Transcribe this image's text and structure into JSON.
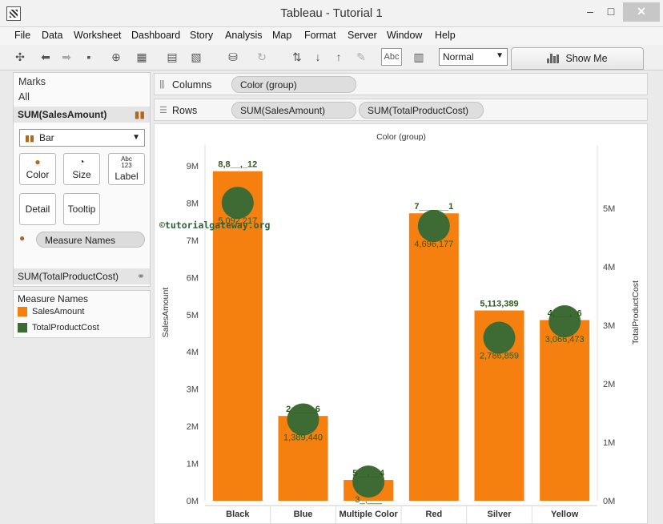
{
  "window": {
    "title": "Tableau - Tutorial 1",
    "min": "–",
    "max": "□",
    "close": "✕"
  },
  "menu": [
    "File",
    "Data",
    "Worksheet",
    "Dashboard",
    "Story",
    "Analysis",
    "Map",
    "Format",
    "Server",
    "Window",
    "Help"
  ],
  "toolbar": {
    "label_button": "Abc",
    "fit_value": "Normal",
    "show_me": "Show Me"
  },
  "shelves": {
    "columns_label": "Columns",
    "columns_pill": "Color (group)",
    "rows_label": "Rows",
    "rows_pills": [
      "SUM(SalesAmount)",
      "SUM(TotalProductCost)"
    ]
  },
  "marks": {
    "header": "Marks",
    "all": "All",
    "sales_card": "SUM(SalesAmount)",
    "mark_type": "Bar",
    "cards": {
      "color": "Color",
      "size": "Size",
      "label": "Label",
      "label_icon_top": "Abc",
      "label_icon_bottom": "123",
      "detail": "Detail",
      "tooltip": "Tooltip"
    },
    "measure_names_pill": "Measure Names",
    "cost_card": "SUM(TotalProductCost)"
  },
  "legend": {
    "title": "Measure Names",
    "items": [
      {
        "label": "SalesAmount",
        "color": "#f5800f"
      },
      {
        "label": "TotalProductCost",
        "color": "#3e6b33"
      }
    ]
  },
  "watermark": "©tutorialgateway.org",
  "colors": {
    "bar": "#f5800f",
    "circle": "#3e6b33",
    "label": "#2e5a1e"
  },
  "chart_data": {
    "type": "bar",
    "header": "Color (group)",
    "categories": [
      "Black",
      "Blue",
      "Multiple Color",
      "Red",
      "Silver",
      "Yellow"
    ],
    "series": [
      {
        "name": "SalesAmount",
        "values": [
          8855512,
          2279096,
          558654,
          7724331,
          5113389,
          4856666
        ],
        "labels": [
          "8,8__,_12",
          "2_____6",
          "5__,__4",
          "7______1",
          "5,113,389",
          "4,___,_6"
        ]
      },
      {
        "name": "TotalProductCost",
        "values": [
          5092217,
          1389440,
          327896,
          4696177,
          2786859,
          3066473
        ],
        "labels": [
          "5,092,217",
          "1,389,440",
          "3_,___",
          "4,696,177",
          "2,786,859",
          "3,066,473"
        ]
      }
    ],
    "ylabel": "SalesAmount",
    "y2label": "TotalProductCost",
    "ylim": [
      0,
      9000000
    ],
    "y2lim": [
      0,
      5600000
    ],
    "yticks": [
      "0M",
      "1M",
      "2M",
      "3M",
      "4M",
      "5M",
      "6M",
      "7M",
      "8M",
      "9M"
    ],
    "y2ticks": [
      "0M",
      "1M",
      "2M",
      "3M",
      "4M",
      "5M"
    ],
    "grid": false
  }
}
